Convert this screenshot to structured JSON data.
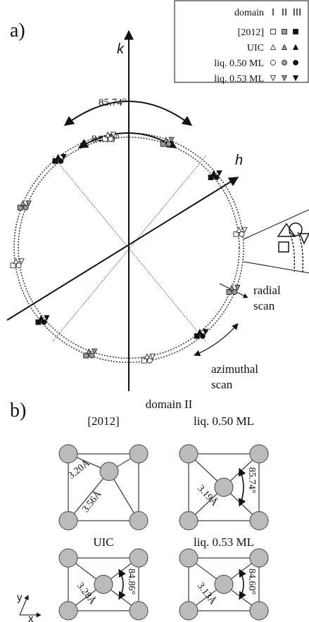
{
  "panel_a": {
    "label": "a)",
    "axis_k": "k",
    "axis_h": "h",
    "angle_outer": "85.74°",
    "angle_inner": "84.60°",
    "radial_scan": [
      "radial",
      "scan"
    ],
    "azimuthal_scan": [
      "azimuthal",
      "scan"
    ],
    "legend": {
      "header": "domain",
      "domains": [
        "I",
        "II",
        "III"
      ],
      "rows": [
        "[2012]",
        "UIC",
        "liq. 0.50 ML",
        "liq. 0.53 ML"
      ]
    }
  },
  "panel_b": {
    "label": "b)",
    "title": "domain II",
    "axis_x": "x",
    "axis_y": "y",
    "cells": [
      {
        "name": "[2012]",
        "labels": [
          "3.20Å",
          "3.56Å"
        ]
      },
      {
        "name": "liq. 0.50 ML",
        "labels": [
          "3.19Å",
          "85.74°"
        ]
      },
      {
        "name": "UIC",
        "labels": [
          "3.28Å",
          "84.86°"
        ]
      },
      {
        "name": "liq. 0.53 ML",
        "labels": [
          "3.13Å",
          "84.60°"
        ]
      }
    ]
  }
}
